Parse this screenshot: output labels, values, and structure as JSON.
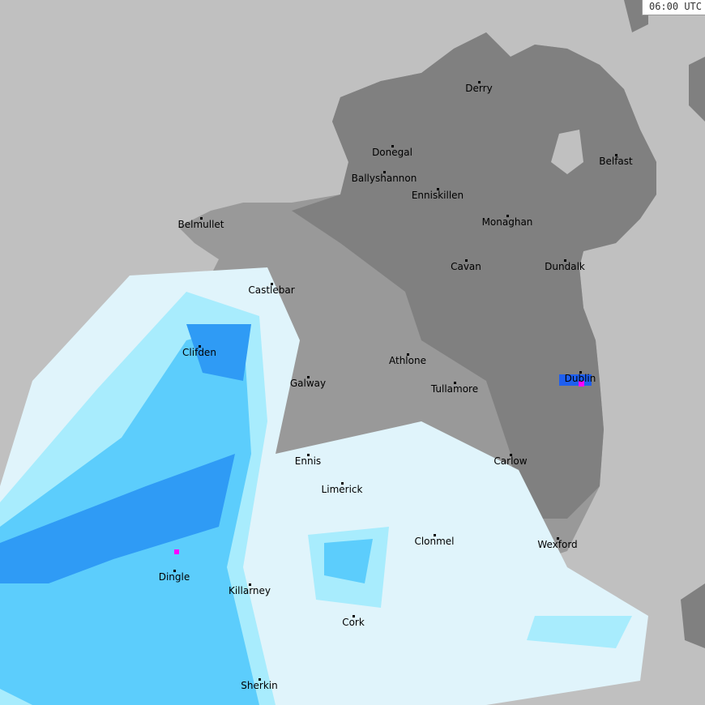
{
  "timestamp": "06:00 UTC",
  "colors": {
    "sea": "#c0c0c0",
    "land_north": "#808080",
    "land_south": "#999999",
    "rain_very_light": "#e0f4fb",
    "rain_light": "#a8ecfd",
    "rain_moderate": "#5ccdfc",
    "rain_heavy": "#2f9bf5",
    "rain_very_heavy": "#1e5ff0",
    "rain_extreme": "#ff00ff"
  },
  "cities": [
    "Derry",
    "Donegal",
    "Belfast",
    "Ballyshannon",
    "Enniskillen",
    "Belmullet",
    "Monaghan",
    "Cavan",
    "Dundalk",
    "Castlebar",
    "Clifden",
    "Athlone",
    "Dublin",
    "Galway",
    "Tullamore",
    "Ennis",
    "Carlow",
    "Limerick",
    "Clonmel",
    "Wexford",
    "Dingle",
    "Killarney",
    "Cork",
    "Sherkin"
  ]
}
